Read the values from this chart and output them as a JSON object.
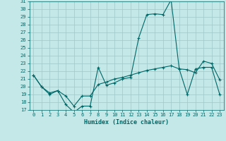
{
  "xlabel": "Humidex (Indice chaleur)",
  "background_color": "#c4e8e8",
  "grid_color": "#a0c8c8",
  "line_color": "#006666",
  "x_values": [
    0,
    1,
    2,
    3,
    4,
    5,
    6,
    7,
    8,
    9,
    10,
    11,
    12,
    13,
    14,
    15,
    16,
    17,
    18,
    19,
    20,
    21,
    22,
    23
  ],
  "line1_y": [
    21.5,
    20.0,
    19.0,
    19.5,
    17.7,
    16.7,
    17.5,
    17.5,
    22.5,
    20.2,
    20.5,
    21.0,
    21.2,
    26.3,
    29.3,
    29.4,
    29.3,
    31.2,
    22.3,
    22.2,
    21.8,
    23.3,
    23.0,
    20.9
  ],
  "line2_y": [
    21.5,
    20.0,
    19.2,
    19.5,
    18.8,
    17.5,
    18.8,
    18.8,
    20.3,
    20.6,
    21.0,
    21.2,
    21.5,
    21.8,
    22.1,
    22.3,
    22.5,
    22.7,
    22.3,
    19.0,
    22.3,
    22.5,
    22.5,
    19.0
  ],
  "ylim": [
    17,
    31
  ],
  "xlim": [
    -0.5,
    23.5
  ],
  "yticks": [
    17,
    18,
    19,
    20,
    21,
    22,
    23,
    24,
    25,
    26,
    27,
    28,
    29,
    30,
    31
  ],
  "xticks": [
    0,
    1,
    2,
    3,
    4,
    5,
    6,
    7,
    8,
    9,
    10,
    11,
    12,
    13,
    14,
    15,
    16,
    17,
    18,
    19,
    20,
    21,
    22,
    23
  ]
}
